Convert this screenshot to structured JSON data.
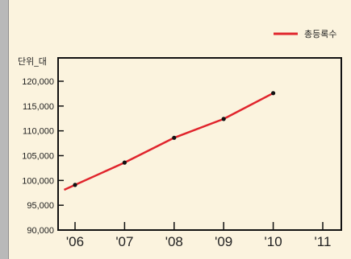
{
  "chart_data": {
    "type": "line",
    "title": "",
    "xlabel": "",
    "ylabel": "단위_대",
    "categories": [
      "'06",
      "'07",
      "'08",
      "'09",
      "'10",
      "'11"
    ],
    "ylim": [
      90000,
      120000
    ],
    "yticks": [
      90000,
      95000,
      100000,
      105000,
      110000,
      115000,
      120000
    ],
    "ytick_labels": [
      "90,000",
      "95,000",
      "100,000",
      "105,000",
      "110,000",
      "115,000",
      "120,000"
    ],
    "legend_position": "top-right",
    "grid": false,
    "series": [
      {
        "name": "총등록수",
        "color": "#e0242c",
        "points": [
          {
            "x": "'06",
            "y": 99100
          },
          {
            "x": "'07",
            "y": 103600
          },
          {
            "x": "'08",
            "y": 108600
          },
          {
            "x": "'09",
            "y": 112400
          },
          {
            "x": "'10",
            "y": 117600
          }
        ]
      }
    ]
  }
}
